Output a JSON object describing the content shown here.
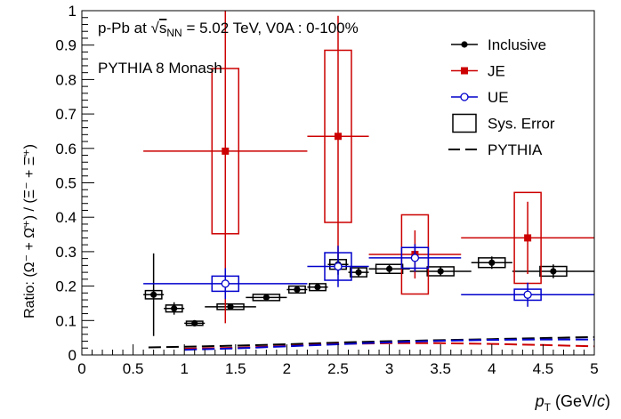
{
  "chart_data": {
    "type": "scatter",
    "title": "",
    "annotations": [
      {
        "id": "collision",
        "text_pre": "p-Pb at ",
        "text_sqrt": "s",
        "text_sub": "NN",
        "text_post": " = 5.02 TeV,  V0A : 0-100%"
      },
      {
        "id": "generator",
        "text": "PYTHIA 8 Monash"
      }
    ],
    "xlabel": "p_T (GeV/c)",
    "xlabel_parts": {
      "p": "p",
      "sub": "T",
      "rest": " (GeV/",
      "c": "c",
      "close": ")"
    },
    "ylabel": "Ratio: (Ω⁻ + Ω̄⁺) / (Ξ⁻ + Ξ̄⁺)",
    "xlim": [
      0,
      5
    ],
    "ylim": [
      0,
      1
    ],
    "x_ticks": [
      0,
      0.5,
      1,
      1.5,
      2,
      2.5,
      3,
      3.5,
      4,
      4.5,
      5
    ],
    "y_ticks": [
      0,
      0.1,
      0.2,
      0.3,
      0.4,
      0.5,
      0.6,
      0.7,
      0.8,
      0.9,
      1
    ],
    "x_tick_labels": [
      "0",
      "0.5",
      "1",
      "1.5",
      "2",
      "2.5",
      "3",
      "3.5",
      "4",
      "4.5",
      "5"
    ],
    "y_tick_labels": [
      "0",
      "0.1",
      "0.2",
      "0.3",
      "0.4",
      "0.5",
      "0.6",
      "0.7",
      "0.8",
      "0.9",
      "1"
    ],
    "grid": false,
    "legend_position": "top-right",
    "legend": [
      {
        "label": "Inclusive",
        "kind": "marker-filled-circle",
        "color": "#000000"
      },
      {
        "label": "JE",
        "kind": "marker-filled-square",
        "color": "#cc0000"
      },
      {
        "label": "UE",
        "kind": "marker-open-circle",
        "color": "#0000cc"
      },
      {
        "label": "Sys. Error",
        "kind": "box",
        "color": "#000000"
      },
      {
        "label": "PYTHIA",
        "kind": "dashed-line",
        "color": "#000000"
      }
    ],
    "series": [
      {
        "name": "Inclusive",
        "color": "#000000",
        "marker": "filled-circle",
        "points": [
          {
            "x": 0.7,
            "xerr": 0.1,
            "y": 0.175,
            "yerr": 0.12,
            "syst": 0.012
          },
          {
            "x": 0.9,
            "xerr": 0.1,
            "y": 0.135,
            "yerr": 0.018,
            "syst": 0.01
          },
          {
            "x": 1.1,
            "xerr": 0.1,
            "y": 0.092,
            "yerr": 0.007,
            "syst": 0.006
          },
          {
            "x": 1.45,
            "xerr": 0.25,
            "y": 0.14,
            "yerr": 0.006,
            "syst": 0.008
          },
          {
            "x": 1.8,
            "xerr": 0.2,
            "y": 0.167,
            "yerr": 0.006,
            "syst": 0.009
          },
          {
            "x": 2.1,
            "xerr": 0.1,
            "y": 0.19,
            "yerr": 0.008,
            "syst": 0.01
          },
          {
            "x": 2.3,
            "xerr": 0.1,
            "y": 0.197,
            "yerr": 0.009,
            "syst": 0.01
          },
          {
            "x": 2.5,
            "xerr": 0.1,
            "y": 0.263,
            "yerr": 0.03,
            "syst": 0.014
          },
          {
            "x": 2.7,
            "xerr": 0.1,
            "y": 0.24,
            "yerr": 0.013,
            "syst": 0.013
          },
          {
            "x": 3.0,
            "xerr": 0.2,
            "y": 0.25,
            "yerr": 0.012,
            "syst": 0.013
          },
          {
            "x": 3.5,
            "xerr": 0.3,
            "y": 0.243,
            "yerr": 0.013,
            "syst": 0.013
          },
          {
            "x": 4.0,
            "xerr": 0.2,
            "y": 0.268,
            "yerr": 0.018,
            "syst": 0.014
          },
          {
            "x": 4.6,
            "xerr": 0.4,
            "y": 0.243,
            "yerr": 0.02,
            "syst": 0.014
          }
        ]
      },
      {
        "name": "JE",
        "color": "#cc0000",
        "marker": "filled-square",
        "points": [
          {
            "x": 1.4,
            "xerr": 0.8,
            "y": 0.592,
            "yerr": 0.5,
            "syst": 0.24
          },
          {
            "x": 2.5,
            "xerr": 0.3,
            "y": 0.635,
            "yerr": 0.35,
            "syst": 0.25
          },
          {
            "x": 3.25,
            "xerr": 0.45,
            "y": 0.292,
            "yerr": 0.07,
            "syst": 0.115
          },
          {
            "x": 4.35,
            "xerr": 0.65,
            "y": 0.34,
            "yerr": 0.105,
            "syst": 0.132
          }
        ]
      },
      {
        "name": "UE",
        "color": "#0000cc",
        "marker": "open-circle",
        "points": [
          {
            "x": 1.4,
            "xerr": 0.8,
            "y": 0.207,
            "yerr": 0.045,
            "syst": 0.022
          },
          {
            "x": 2.5,
            "xerr": 0.3,
            "y": 0.257,
            "yerr": 0.06,
            "syst": 0.04
          },
          {
            "x": 3.25,
            "xerr": 0.45,
            "y": 0.282,
            "yerr": 0.04,
            "syst": 0.03
          },
          {
            "x": 4.35,
            "xerr": 0.65,
            "y": 0.175,
            "yerr": 0.035,
            "syst": 0.016
          }
        ]
      }
    ],
    "pythia": [
      {
        "name": "PYTHIA Inclusive",
        "color": "#000000",
        "x": [
          0.65,
          1.0,
          1.5,
          2.0,
          2.5,
          3.0,
          3.5,
          4.0,
          4.5,
          5.0
        ],
        "y": [
          0.022,
          0.024,
          0.027,
          0.031,
          0.036,
          0.04,
          0.043,
          0.046,
          0.049,
          0.052
        ]
      },
      {
        "name": "PYTHIA JE",
        "color": "#cc0000",
        "x": [
          1.0,
          1.5,
          2.0,
          2.5,
          3.0,
          3.5,
          4.0,
          4.5,
          5.0
        ],
        "y": [
          0.018,
          0.021,
          0.026,
          0.032,
          0.034,
          0.034,
          0.032,
          0.029,
          0.025
        ]
      },
      {
        "name": "PYTHIA UE",
        "color": "#0000cc",
        "x": [
          1.0,
          1.5,
          2.0,
          2.5,
          3.0,
          3.5,
          4.0,
          4.5,
          5.0
        ],
        "y": [
          0.015,
          0.019,
          0.025,
          0.031,
          0.037,
          0.041,
          0.044,
          0.045,
          0.045
        ]
      }
    ]
  }
}
